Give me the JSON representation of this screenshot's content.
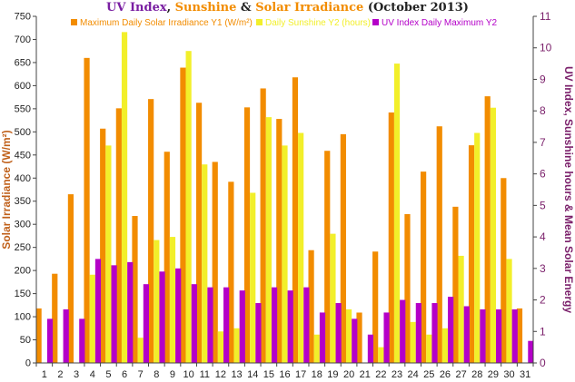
{
  "title": {
    "part1": "UV Index",
    "sep1": ", ",
    "part2": "Sunshine",
    "sep2": " & ",
    "part3": "Solar Irradiance",
    "part4": " (October 2013)"
  },
  "colors": {
    "irradiance": "#f28c00",
    "sunshine": "#f2ef2a",
    "uv": "#b400c8",
    "left_axis_label": "#c0601a",
    "right_axis_label": "#7a1f6a",
    "axis": "#444444"
  },
  "chart_data": {
    "type": "bar",
    "title": "UV Index, Sunshine & Solar Irradiance (October 2013)",
    "xlabel": "",
    "ylabel": "Solar Irradiance (W/m²)",
    "y2label": "UV Index, Sunshine hours & Mean Solar Energy",
    "ylim": [
      0,
      750
    ],
    "y2lim": [
      0,
      11
    ],
    "yticks": [
      0,
      50,
      100,
      150,
      200,
      250,
      300,
      350,
      400,
      450,
      500,
      550,
      600,
      650,
      700,
      750
    ],
    "y2ticks": [
      0,
      1,
      2,
      3,
      4,
      5,
      6,
      7,
      8,
      9,
      10,
      11
    ],
    "legend_position": "top",
    "grid": false,
    "categories": [
      "1",
      "2",
      "3",
      "4",
      "5",
      "6",
      "7",
      "8",
      "9",
      "10",
      "11",
      "12",
      "13",
      "14",
      "15",
      "16",
      "17",
      "18",
      "19",
      "20",
      "21",
      "22",
      "23",
      "24",
      "25",
      "26",
      "27",
      "28",
      "29",
      "30",
      "31"
    ],
    "series": [
      {
        "name": "Maximum Daily Solar Irradiance Y1 (W/m²)",
        "axis": "y1",
        "values": [
          118,
          193,
          365,
          660,
          507,
          551,
          318,
          571,
          457,
          639,
          563,
          435,
          392,
          553,
          594,
          528,
          618,
          244,
          459,
          495,
          109,
          241,
          542,
          322,
          414,
          512,
          338,
          471,
          577,
          400,
          118
        ]
      },
      {
        "name": "Daily Sunshine Y2 (hours)",
        "axis": "y2",
        "values": [
          0,
          0,
          0,
          2.8,
          6.9,
          10.5,
          0.8,
          3.9,
          4.0,
          9.9,
          6.3,
          1.0,
          1.1,
          5.4,
          7.8,
          6.9,
          7.3,
          0.9,
          4.1,
          1.7,
          0,
          0.5,
          9.5,
          1.3,
          0.9,
          1.1,
          3.4,
          7.3,
          8.1,
          3.3,
          0
        ]
      },
      {
        "name": "UV Index Daily Maximum Y2",
        "axis": "y2",
        "values": [
          1.4,
          1.7,
          1.4,
          3.3,
          3.1,
          3.2,
          2.5,
          2.9,
          3.0,
          2.5,
          2.4,
          2.4,
          2.3,
          1.9,
          2.4,
          2.3,
          2.4,
          1.6,
          1.9,
          1.4,
          0.9,
          1.6,
          2.0,
          1.9,
          1.9,
          2.1,
          1.8,
          1.7,
          1.7,
          1.7,
          0.7
        ]
      }
    ]
  }
}
